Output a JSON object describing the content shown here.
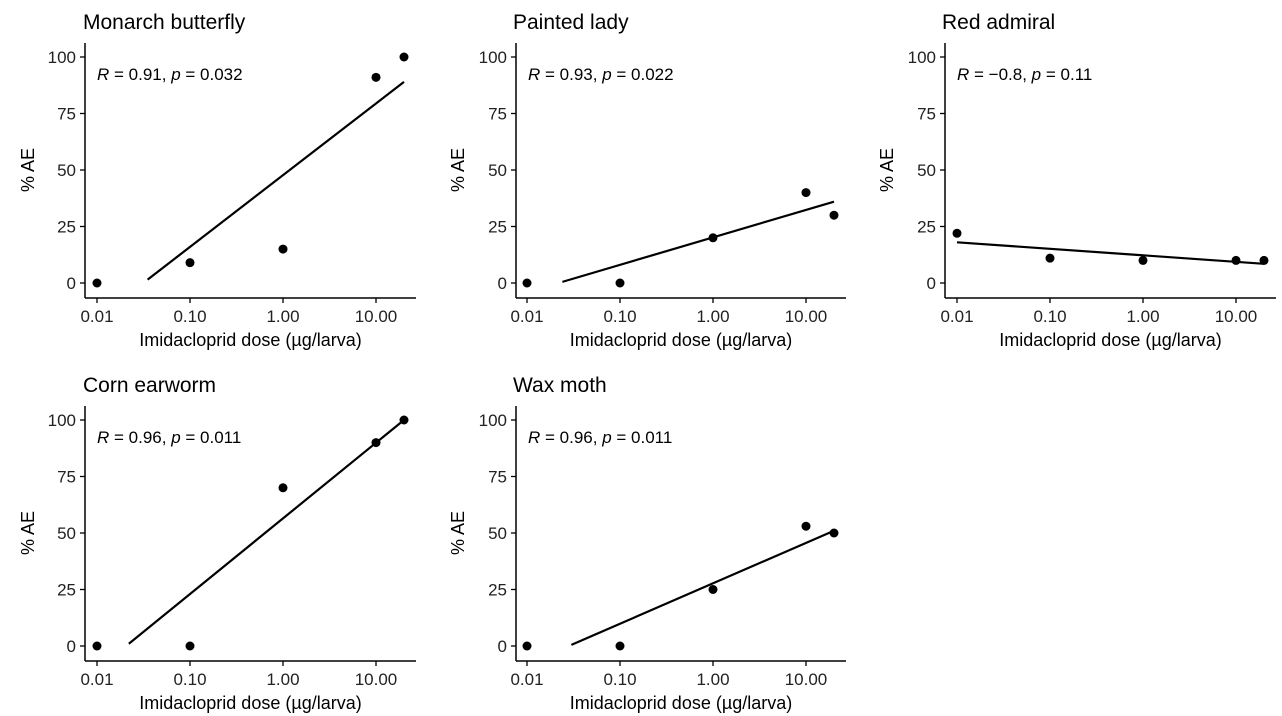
{
  "chart_data": [
    {
      "type": "scatter",
      "title": "Monarch butterfly",
      "xlabel": "Imidacloprid dose (µg/larva)",
      "ylabel": "% AE",
      "x_scale": "log",
      "xticks": [
        "0.01",
        "0.10",
        "1.00",
        "10.00"
      ],
      "yticks": [
        "0",
        "25",
        "50",
        "75",
        "100"
      ],
      "ylim": [
        0,
        100
      ],
      "annotation": {
        "R": "0.91",
        "p": "0.032"
      },
      "points": [
        {
          "x": 0.01,
          "y": 0
        },
        {
          "x": 0.1,
          "y": 9
        },
        {
          "x": 1,
          "y": 15
        },
        {
          "x": 10,
          "y": 91
        },
        {
          "x": 20,
          "y": 100
        }
      ],
      "fit": {
        "x": [
          0.035,
          20
        ],
        "y": [
          1.5,
          89
        ]
      }
    },
    {
      "type": "scatter",
      "title": "Painted lady",
      "xlabel": "Imidacloprid dose (µg/larva)",
      "ylabel": "% AE",
      "x_scale": "log",
      "xticks": [
        "0.01",
        "0.10",
        "1.00",
        "10.00"
      ],
      "yticks": [
        "0",
        "25",
        "50",
        "75",
        "100"
      ],
      "ylim": [
        0,
        100
      ],
      "annotation": {
        "R": "0.93",
        "p": "0.022"
      },
      "points": [
        {
          "x": 0.01,
          "y": 0
        },
        {
          "x": 0.1,
          "y": 0
        },
        {
          "x": 1,
          "y": 20
        },
        {
          "x": 10,
          "y": 40
        },
        {
          "x": 20,
          "y": 30
        }
      ],
      "fit": {
        "x": [
          0.024,
          20
        ],
        "y": [
          0.5,
          36
        ]
      }
    },
    {
      "type": "scatter",
      "title": "Red admiral",
      "xlabel": "Imidacloprid dose (µg/larva)",
      "ylabel": "% AE",
      "x_scale": "log",
      "xticks": [
        "0.01",
        "0.10",
        "1.00",
        "10.00"
      ],
      "yticks": [
        "0",
        "25",
        "50",
        "75",
        "100"
      ],
      "ylim": [
        0,
        100
      ],
      "annotation": {
        "R": "−0.8",
        "p": "0.11"
      },
      "points": [
        {
          "x": 0.01,
          "y": 22
        },
        {
          "x": 0.1,
          "y": 11
        },
        {
          "x": 1,
          "y": 10
        },
        {
          "x": 10,
          "y": 10
        },
        {
          "x": 20,
          "y": 10
        }
      ],
      "fit": {
        "x": [
          0.01,
          20
        ],
        "y": [
          18,
          8.5
        ]
      }
    },
    {
      "type": "scatter",
      "title": "Corn earworm",
      "xlabel": "Imidacloprid dose (µg/larva)",
      "ylabel": "% AE",
      "x_scale": "log",
      "xticks": [
        "0.01",
        "0.10",
        "1.00",
        "10.00"
      ],
      "yticks": [
        "0",
        "25",
        "50",
        "75",
        "100"
      ],
      "ylim": [
        0,
        100
      ],
      "annotation": {
        "R": "0.96",
        "p": "0.011"
      },
      "points": [
        {
          "x": 0.01,
          "y": 0
        },
        {
          "x": 0.1,
          "y": 0
        },
        {
          "x": 1,
          "y": 70
        },
        {
          "x": 10,
          "y": 90
        },
        {
          "x": 20,
          "y": 100
        }
      ],
      "fit": {
        "x": [
          0.022,
          20
        ],
        "y": [
          1,
          100
        ]
      }
    },
    {
      "type": "scatter",
      "title": "Wax moth",
      "xlabel": "Imidacloprid dose (µg/larva)",
      "ylabel": "% AE",
      "x_scale": "log",
      "xticks": [
        "0.01",
        "0.10",
        "1.00",
        "10.00"
      ],
      "yticks": [
        "0",
        "25",
        "50",
        "75",
        "100"
      ],
      "ylim": [
        0,
        100
      ],
      "annotation": {
        "R": "0.96",
        "p": "0.011"
      },
      "points": [
        {
          "x": 0.01,
          "y": 0
        },
        {
          "x": 0.1,
          "y": 0
        },
        {
          "x": 1,
          "y": 25
        },
        {
          "x": 10,
          "y": 53
        },
        {
          "x": 20,
          "y": 50
        }
      ],
      "fit": {
        "x": [
          0.03,
          20
        ],
        "y": [
          0.5,
          51
        ]
      }
    }
  ]
}
